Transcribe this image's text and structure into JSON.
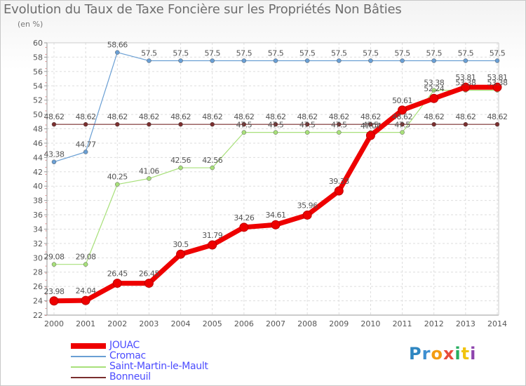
{
  "title": "Evolution du Taux de Taxe Foncière sur les Propriétés Non Bâties",
  "subtitle": "(en %)",
  "logo": {
    "text": "Proxiti",
    "letters": [
      "P",
      "r",
      "o",
      "x",
      "i",
      "t",
      "i"
    ],
    "colors": [
      "#2e86c1",
      "#3d8fd1",
      "#f39c12",
      "#e74c3c",
      "#27ae60",
      "#f1c40f",
      "#8e44ad"
    ]
  },
  "chart_data": {
    "type": "line",
    "title": "Evolution du Taux de Taxe Foncière sur les Propriétés Non Bâties",
    "ylabel": "(en %)",
    "xlabel": "",
    "ylim": [
      22,
      60
    ],
    "yticks": [
      22,
      24,
      26,
      28,
      30,
      32,
      34,
      36,
      38,
      40,
      42,
      44,
      46,
      48,
      50,
      52,
      54,
      56,
      58,
      60
    ],
    "grid": true,
    "legend": "bottom-left",
    "categories": [
      "2000",
      "2001",
      "2002",
      "2003",
      "2004",
      "2005",
      "2006",
      "2007",
      "2008",
      "2009",
      "2010",
      "2011",
      "2012",
      "2013",
      "2014"
    ],
    "series": [
      {
        "name": "Cromac",
        "color": "#6a9fd4",
        "width": 1.2,
        "values": [
          43.38,
          44.77,
          58.66,
          57.5,
          57.5,
          57.5,
          57.5,
          57.5,
          57.5,
          57.5,
          57.5,
          57.5,
          57.5,
          57.5,
          57.5
        ],
        "labels": [
          "43.38",
          "44.77",
          "58.66",
          "57.5",
          "57.5",
          "57.5",
          "57.5",
          "57.5",
          "57.5",
          "57.5",
          "57.5",
          "57.5",
          "57.5",
          "57.5",
          "57.5"
        ]
      },
      {
        "name": "Saint-Martin-le-Mault",
        "color": "#a8e07a",
        "width": 1.2,
        "values": [
          29.08,
          29.08,
          40.25,
          41.06,
          42.56,
          42.56,
          47.5,
          47.5,
          47.5,
          47.5,
          47.5,
          47.5,
          53.38,
          53.38,
          53.38
        ],
        "labels": [
          "29.08",
          "29.08",
          "40.25",
          "41.06",
          "42.56",
          "42.56",
          "47.5",
          "47.5",
          "47.5",
          "47.5",
          "47.5",
          "47.5",
          "53.38",
          "53.38",
          "53.38"
        ]
      },
      {
        "name": "Bonneuil",
        "color": "#7a2e2e",
        "width": 1.2,
        "values": [
          48.62,
          48.62,
          48.62,
          48.62,
          48.62,
          48.62,
          48.62,
          48.62,
          48.62,
          48.62,
          48.62,
          48.62,
          48.62,
          48.62,
          48.62
        ],
        "labels": [
          "48.62",
          "48.62",
          "48.62",
          "48.62",
          "48.62",
          "48.62",
          "48.62",
          "48.62",
          "48.62",
          "48.62",
          "48.62",
          "48.62",
          "48.62",
          "48.62",
          "48.62"
        ]
      },
      {
        "name": "JOUAC",
        "color": "#ee0000",
        "width": 7,
        "values": [
          23.98,
          24.04,
          26.45,
          26.45,
          30.5,
          31.79,
          34.26,
          34.61,
          35.96,
          39.33,
          47.07,
          50.61,
          52.24,
          53.81,
          53.81
        ],
        "labels": [
          "23.98",
          "24.04",
          "26.45",
          "26.45",
          "30.5",
          "31.79",
          "34.26",
          "34.61",
          "35.96",
          "39.33",
          "47.07",
          "50.61",
          "52.24",
          "53.81",
          "53.81"
        ]
      }
    ],
    "legend_order": [
      "JOUAC",
      "Cromac",
      "Saint-Martin-le-Mault",
      "Bonneuil"
    ]
  }
}
